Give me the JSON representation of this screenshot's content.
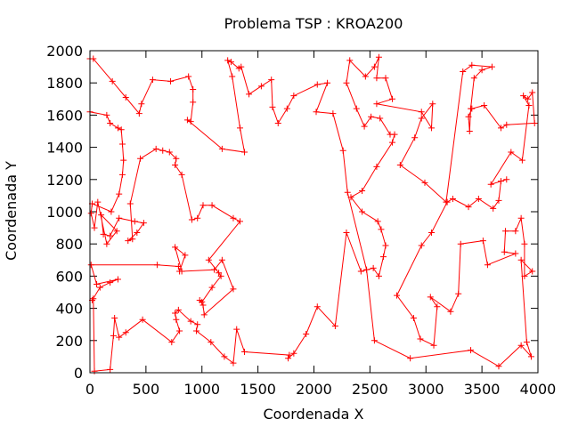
{
  "chart_data": {
    "type": "line",
    "title": "Problema TSP : KROA200",
    "xlabel": "Coordenada X",
    "ylabel": "Coordenada Y",
    "xlim": [
      0,
      4000
    ],
    "ylim": [
      0,
      2000
    ],
    "xticks": [
      0,
      500,
      1000,
      1500,
      2000,
      2500,
      3000,
      3500,
      4000
    ],
    "yticks": [
      0,
      200,
      400,
      600,
      800,
      1000,
      1200,
      1400,
      1600,
      1800,
      2000
    ],
    "grid": false,
    "legend": "none",
    "colors": {
      "series": "#ff0000",
      "axes": "#000000",
      "background": "#ffffff"
    },
    "series": [
      {
        "marker": "plus",
        "closed": true,
        "points": [
          [
            30,
            1950
          ],
          [
            200,
            1810
          ],
          [
            320,
            1710
          ],
          [
            440,
            1610
          ],
          [
            460,
            1670
          ],
          [
            560,
            1820
          ],
          [
            720,
            1810
          ],
          [
            880,
            1840
          ],
          [
            920,
            1760
          ],
          [
            920,
            1680
          ],
          [
            900,
            1560
          ],
          [
            870,
            1570
          ],
          [
            1180,
            1390
          ],
          [
            1380,
            1370
          ],
          [
            1340,
            1520
          ],
          [
            1270,
            1840
          ],
          [
            1230,
            1940
          ],
          [
            1260,
            1930
          ],
          [
            1330,
            1890
          ],
          [
            1350,
            1900
          ],
          [
            1420,
            1730
          ],
          [
            1530,
            1780
          ],
          [
            1620,
            1820
          ],
          [
            1630,
            1650
          ],
          [
            1680,
            1550
          ],
          [
            1760,
            1640
          ],
          [
            1820,
            1720
          ],
          [
            2030,
            1790
          ],
          [
            2120,
            1800
          ],
          [
            2020,
            1620
          ],
          [
            2170,
            1610
          ],
          [
            2260,
            1380
          ],
          [
            2300,
            1120
          ],
          [
            2470,
            640
          ],
          [
            2540,
            200
          ],
          [
            2860,
            90
          ],
          [
            3400,
            140
          ],
          [
            3650,
            40
          ],
          [
            3850,
            170
          ],
          [
            3940,
            100
          ],
          [
            3900,
            190
          ],
          [
            3850,
            700
          ],
          [
            3950,
            630
          ],
          [
            3880,
            600
          ],
          [
            3880,
            800
          ],
          [
            3850,
            960
          ],
          [
            3800,
            880
          ],
          [
            3710,
            880
          ],
          [
            3700,
            750
          ],
          [
            3800,
            740
          ],
          [
            3550,
            670
          ],
          [
            3510,
            820
          ],
          [
            3310,
            800
          ],
          [
            3290,
            490
          ],
          [
            3220,
            380
          ],
          [
            3040,
            470
          ],
          [
            3100,
            410
          ],
          [
            3070,
            170
          ],
          [
            2950,
            210
          ],
          [
            2890,
            340
          ],
          [
            2740,
            480
          ],
          [
            2960,
            790
          ],
          [
            3050,
            870
          ],
          [
            3190,
            1060
          ],
          [
            3240,
            1080
          ],
          [
            3380,
            1030
          ],
          [
            3470,
            1080
          ],
          [
            3600,
            1020
          ],
          [
            3650,
            1070
          ],
          [
            3670,
            1190
          ],
          [
            3720,
            1200
          ],
          [
            3580,
            1170
          ],
          [
            3760,
            1370
          ],
          [
            3860,
            1320
          ],
          [
            3920,
            1660
          ],
          [
            3870,
            1720
          ],
          [
            3910,
            1700
          ],
          [
            3950,
            1740
          ],
          [
            3970,
            1550
          ],
          [
            3720,
            1540
          ],
          [
            3670,
            1520
          ],
          [
            3520,
            1660
          ],
          [
            3410,
            1640
          ],
          [
            3380,
            1590
          ],
          [
            3390,
            1500
          ],
          [
            3400,
            1640
          ],
          [
            3430,
            1830
          ],
          [
            3500,
            1880
          ],
          [
            3590,
            1900
          ],
          [
            3410,
            1910
          ],
          [
            3330,
            1870
          ],
          [
            3180,
            1060
          ],
          [
            2990,
            1180
          ],
          [
            2770,
            1290
          ],
          [
            2900,
            1460
          ],
          [
            2960,
            1580
          ],
          [
            3060,
            1670
          ],
          [
            3050,
            1520
          ],
          [
            2960,
            1620
          ],
          [
            2560,
            1670
          ],
          [
            2700,
            1700
          ],
          [
            2640,
            1830
          ],
          [
            2560,
            1830
          ],
          [
            2580,
            1960
          ],
          [
            2540,
            1900
          ],
          [
            2460,
            1840
          ],
          [
            2320,
            1940
          ],
          [
            2290,
            1800
          ],
          [
            2380,
            1640
          ],
          [
            2450,
            1530
          ],
          [
            2510,
            1590
          ],
          [
            2590,
            1580
          ],
          [
            2680,
            1480
          ],
          [
            2720,
            1480
          ],
          [
            2700,
            1430
          ],
          [
            2560,
            1280
          ],
          [
            2430,
            1130
          ],
          [
            2330,
            1090
          ],
          [
            2430,
            1000
          ],
          [
            2570,
            940
          ],
          [
            2600,
            890
          ],
          [
            2640,
            790
          ],
          [
            2620,
            720
          ],
          [
            2580,
            600
          ],
          [
            2530,
            650
          ],
          [
            2420,
            630
          ],
          [
            2290,
            870
          ],
          [
            2190,
            290
          ],
          [
            2030,
            410
          ],
          [
            1930,
            240
          ],
          [
            1820,
            120
          ],
          [
            1770,
            90
          ],
          [
            1780,
            110
          ],
          [
            1380,
            130
          ],
          [
            1310,
            270
          ],
          [
            1280,
            60
          ],
          [
            1200,
            100
          ],
          [
            1080,
            190
          ],
          [
            950,
            260
          ],
          [
            960,
            300
          ],
          [
            900,
            320
          ],
          [
            790,
            390
          ],
          [
            760,
            370
          ],
          [
            770,
            330
          ],
          [
            800,
            260
          ],
          [
            730,
            190
          ],
          [
            470,
            330
          ],
          [
            320,
            250
          ],
          [
            260,
            220
          ],
          [
            220,
            340
          ],
          [
            210,
            230
          ],
          [
            180,
            20
          ],
          [
            40,
            10
          ],
          [
            30,
            460
          ],
          [
            20,
            450
          ],
          [
            90,
            530
          ],
          [
            180,
            560
          ],
          [
            250,
            580
          ],
          [
            60,
            550
          ],
          [
            10,
            670
          ],
          [
            600,
            670
          ],
          [
            790,
            660
          ],
          [
            800,
            630
          ],
          [
            850,
            730
          ],
          [
            760,
            780
          ],
          [
            820,
            630
          ],
          [
            1110,
            640
          ],
          [
            1180,
            700
          ],
          [
            1280,
            520
          ],
          [
            1020,
            360
          ],
          [
            1010,
            420
          ],
          [
            980,
            450
          ],
          [
            1000,
            440
          ],
          [
            1090,
            530
          ],
          [
            1170,
            600
          ],
          [
            1150,
            620
          ],
          [
            1060,
            700
          ],
          [
            1340,
            940
          ],
          [
            1280,
            960
          ],
          [
            1090,
            1040
          ],
          [
            1010,
            1040
          ],
          [
            960,
            960
          ],
          [
            910,
            950
          ],
          [
            820,
            1230
          ],
          [
            760,
            1290
          ],
          [
            770,
            1330
          ],
          [
            710,
            1370
          ],
          [
            650,
            1380
          ],
          [
            590,
            1390
          ],
          [
            450,
            1330
          ],
          [
            360,
            1050
          ],
          [
            380,
            830
          ],
          [
            340,
            820
          ],
          [
            420,
            870
          ],
          [
            480,
            930
          ],
          [
            400,
            940
          ],
          [
            260,
            960
          ],
          [
            180,
            850
          ],
          [
            120,
            860
          ],
          [
            100,
            980
          ],
          [
            240,
            880
          ],
          [
            150,
            800
          ],
          [
            70,
            1060
          ],
          [
            40,
            900
          ],
          [
            10,
            990
          ],
          [
            20,
            1050
          ],
          [
            190,
            1000
          ],
          [
            260,
            1110
          ],
          [
            290,
            1230
          ],
          [
            300,
            1320
          ],
          [
            290,
            1420
          ],
          [
            280,
            1510
          ],
          [
            250,
            1520
          ],
          [
            180,
            1550
          ],
          [
            150,
            1600
          ],
          [
            0,
            1620
          ],
          [
            0,
            1950
          ]
        ]
      }
    ]
  }
}
